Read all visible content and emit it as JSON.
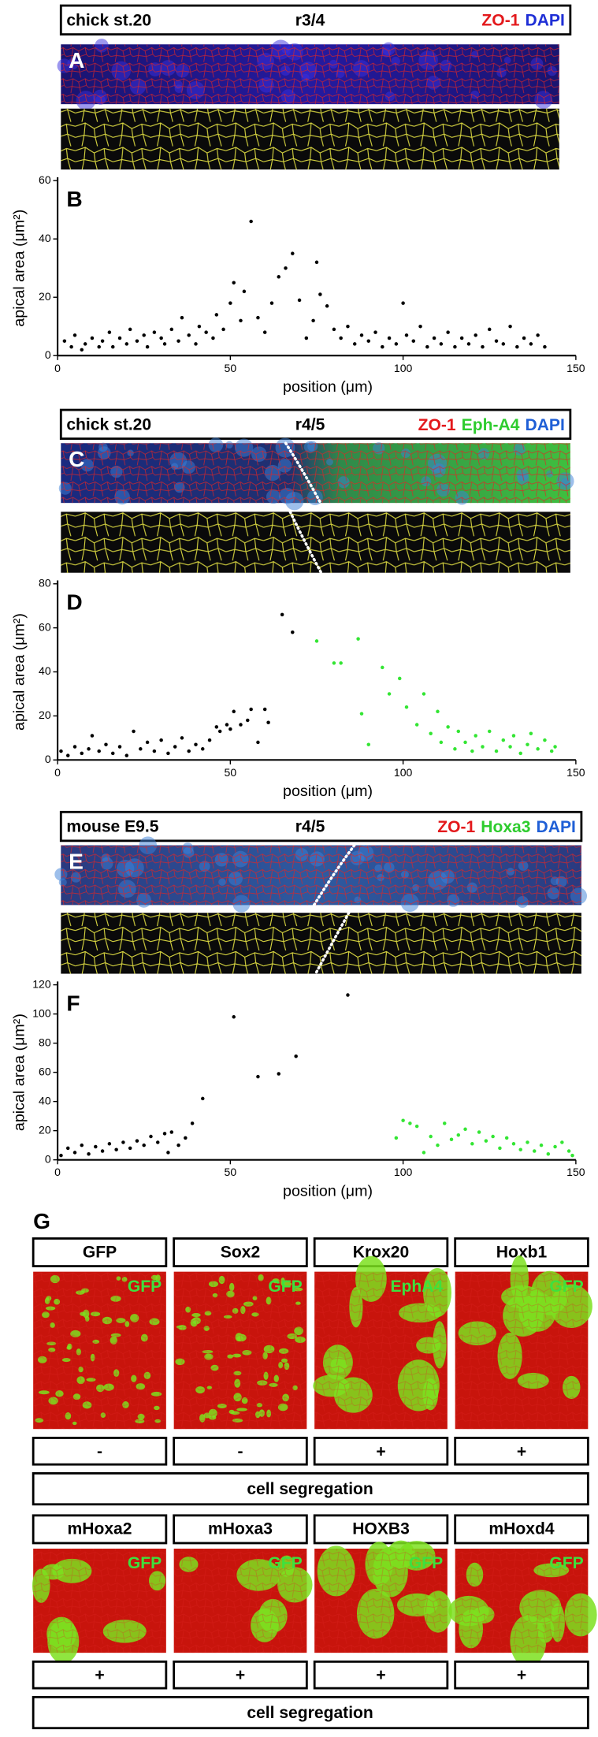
{
  "panels": [
    {
      "label": "A",
      "header": {
        "stage": "chick st.20",
        "region": "r3/4",
        "stains": [
          {
            "text": "ZO-1",
            "color": "#e3191c"
          },
          {
            "text": "DAPI",
            "color": "#1f2fd6"
          }
        ]
      }
    },
    {
      "label": "C",
      "header": {
        "stage": "chick st.20",
        "region": "r4/5",
        "stains": [
          {
            "text": "ZO-1",
            "color": "#e3191c"
          },
          {
            "text": "Eph-A4",
            "color": "#2ecc2e"
          },
          {
            "text": "DAPI",
            "color": "#1f5fd6"
          }
        ]
      }
    },
    {
      "label": "E",
      "header": {
        "stage": "mouse E9.5",
        "region": "r4/5",
        "stains": [
          {
            "text": "ZO-1",
            "color": "#e3191c"
          },
          {
            "text": "Hoxa3",
            "color": "#2ecc2e"
          },
          {
            "text": "DAPI",
            "color": "#1f5fd6"
          }
        ]
      }
    }
  ],
  "chart_data": [
    {
      "type": "scatter",
      "panel_label": "B",
      "xlabel": "position (μm)",
      "ylabel": "apical area (μm²)",
      "xlim": [
        0,
        150
      ],
      "ylim": [
        0,
        60
      ],
      "xticks": [
        0,
        50,
        100,
        150
      ],
      "yticks": [
        0,
        20,
        40,
        60
      ],
      "series": [
        {
          "color": "#000000",
          "x": [
            2,
            4,
            5,
            7,
            8,
            10,
            12,
            13,
            15,
            16,
            18,
            20,
            21,
            23,
            25,
            26,
            28,
            30,
            31,
            33,
            35,
            36,
            38,
            40,
            41,
            43,
            45,
            46,
            48,
            50,
            51,
            53,
            54,
            56,
            58,
            60,
            62,
            64,
            66,
            68,
            70,
            72,
            74,
            75,
            76,
            78,
            80,
            82,
            84,
            86,
            88,
            90,
            92,
            94,
            96,
            98,
            100,
            101,
            103,
            105,
            107,
            109,
            111,
            113,
            115,
            117,
            119,
            121,
            123,
            125,
            127,
            129,
            131,
            133,
            135,
            137,
            139,
            141
          ],
          "values": [
            5,
            3,
            7,
            2,
            4,
            6,
            3,
            5,
            8,
            3,
            6,
            4,
            9,
            5,
            7,
            3,
            8,
            6,
            4,
            9,
            5,
            13,
            7,
            4,
            10,
            8,
            6,
            14,
            9,
            18,
            25,
            12,
            22,
            46,
            13,
            8,
            18,
            27,
            30,
            35,
            19,
            6,
            12,
            32,
            21,
            17,
            9,
            6,
            10,
            4,
            7,
            5,
            8,
            3,
            6,
            4,
            18,
            7,
            5,
            10,
            3,
            6,
            4,
            8,
            3,
            6,
            4,
            7,
            3,
            9,
            5,
            4,
            10,
            3,
            6,
            4,
            7,
            3
          ]
        }
      ]
    },
    {
      "type": "scatter",
      "panel_label": "D",
      "xlabel": "position (μm)",
      "ylabel": "apical area (μm²)",
      "xlim": [
        0,
        150
      ],
      "ylim": [
        0,
        80
      ],
      "xticks": [
        0,
        50,
        100,
        150
      ],
      "yticks": [
        0,
        20,
        40,
        60,
        80
      ],
      "series": [
        {
          "color": "#000000",
          "x": [
            1,
            3,
            5,
            7,
            9,
            10,
            12,
            14,
            16,
            18,
            20,
            22,
            24,
            26,
            28,
            30,
            32,
            34,
            36,
            38,
            40,
            42,
            44,
            46,
            47,
            49,
            50,
            51,
            53,
            55,
            56,
            58,
            60,
            61,
            65,
            68
          ],
          "values": [
            4,
            2,
            6,
            3,
            5,
            11,
            4,
            7,
            3,
            6,
            2,
            13,
            5,
            8,
            4,
            9,
            3,
            6,
            10,
            4,
            7,
            5,
            9,
            15,
            13,
            16,
            14,
            22,
            16,
            18,
            23,
            8,
            23,
            17,
            66,
            58
          ]
        },
        {
          "color": "#33e533",
          "x": [
            75,
            80,
            82,
            87,
            88,
            90,
            94,
            96,
            99,
            101,
            104,
            106,
            108,
            110,
            111,
            113,
            115,
            116,
            118,
            120,
            121,
            123,
            125,
            127,
            129,
            131,
            132,
            134,
            136,
            137,
            139,
            141,
            143,
            144
          ],
          "values": [
            54,
            44,
            44,
            55,
            21,
            7,
            42,
            30,
            37,
            24,
            16,
            30,
            12,
            22,
            8,
            15,
            5,
            13,
            8,
            4,
            11,
            6,
            13,
            4,
            9,
            6,
            11,
            3,
            7,
            12,
            5,
            9,
            4,
            6
          ]
        }
      ]
    },
    {
      "type": "scatter",
      "panel_label": "F",
      "xlabel": "position (μm)",
      "ylabel": "apical area (μm²)",
      "xlim": [
        0,
        150
      ],
      "ylim": [
        0,
        120
      ],
      "xticks": [
        0,
        50,
        100,
        150
      ],
      "yticks": [
        0,
        20,
        40,
        60,
        80,
        100,
        120
      ],
      "series": [
        {
          "color": "#000000",
          "x": [
            1,
            3,
            5,
            7,
            9,
            11,
            13,
            15,
            17,
            19,
            21,
            23,
            25,
            27,
            29,
            31,
            32,
            33,
            35,
            37,
            39,
            42,
            51,
            58,
            64,
            69,
            84
          ],
          "values": [
            3,
            8,
            5,
            10,
            4,
            9,
            6,
            11,
            7,
            12,
            8,
            13,
            10,
            16,
            12,
            18,
            5,
            19,
            10,
            15,
            25,
            42,
            98,
            57,
            59,
            71,
            113
          ]
        },
        {
          "color": "#33e533",
          "x": [
            98,
            100,
            102,
            104,
            106,
            108,
            110,
            112,
            114,
            116,
            118,
            120,
            122,
            124,
            126,
            128,
            130,
            132,
            134,
            136,
            138,
            140,
            142,
            144,
            146,
            148,
            149
          ],
          "values": [
            15,
            27,
            25,
            23,
            5,
            16,
            10,
            25,
            14,
            17,
            21,
            11,
            19,
            13,
            16,
            8,
            15,
            11,
            7,
            12,
            6,
            10,
            4,
            9,
            12,
            6,
            3
          ]
        }
      ]
    }
  ],
  "panel_g": {
    "label": "G",
    "rows": [
      {
        "constructs": [
          {
            "name": "GFP",
            "inset": "GFP",
            "segregation": "-"
          },
          {
            "name": "Sox2",
            "inset": "GFP",
            "segregation": "-"
          },
          {
            "name": "Krox20",
            "inset": "EphA4",
            "segregation": "+"
          },
          {
            "name": "Hoxb1",
            "inset": "GFP",
            "segregation": "+"
          }
        ],
        "outcome": "cell segregation"
      },
      {
        "constructs": [
          {
            "name": "mHoxa2",
            "inset": "GFP",
            "segregation": "+"
          },
          {
            "name": "mHoxa3",
            "inset": "GFP",
            "segregation": "+"
          },
          {
            "name": "HOXB3",
            "inset": "GFP",
            "segregation": "+"
          },
          {
            "name": "mHoxd4",
            "inset": "GFP",
            "segregation": "+"
          }
        ],
        "outcome": "cell segregation"
      }
    ]
  }
}
